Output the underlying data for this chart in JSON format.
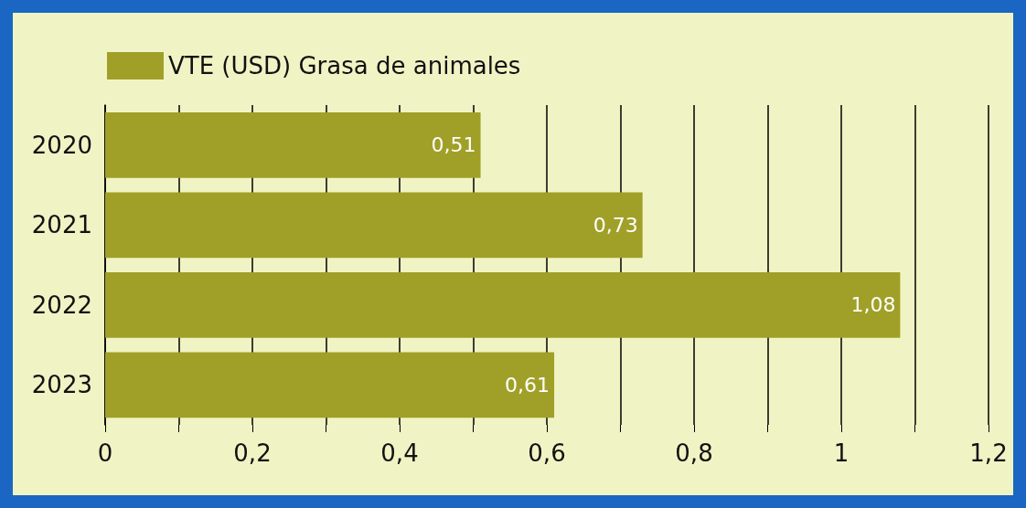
{
  "chart_data": {
    "type": "bar",
    "orientation": "horizontal",
    "categories": [
      "2020",
      "2021",
      "2022",
      "2023"
    ],
    "series": [
      {
        "name": "VTE (USD) Grasa de animales",
        "color": "#a0a028",
        "values": [
          0.51,
          0.73,
          1.08,
          0.61
        ],
        "value_labels": [
          "0,51",
          "0,73",
          "1,08",
          "0,61"
        ]
      }
    ],
    "xlim": [
      0,
      1.2
    ],
    "xticks": [
      0,
      {
        "value": 0.1,
        "label": null
      },
      {
        "value": 0.2,
        "label": "0,2"
      },
      {
        "value": 0.3,
        "label": null
      },
      {
        "value": 0.4,
        "label": "0,4"
      },
      {
        "value": 0.5,
        "label": null
      },
      {
        "value": 0.6,
        "label": "0,6"
      },
      {
        "value": 0.7,
        "label": null
      },
      {
        "value": 0.8,
        "label": "0,8"
      },
      {
        "value": 0.9,
        "label": null
      },
      1,
      {
        "value": 1.1,
        "label": null
      },
      {
        "value": 1.2,
        "label": "1,2"
      }
    ],
    "grid": "x",
    "legend": "top left"
  }
}
